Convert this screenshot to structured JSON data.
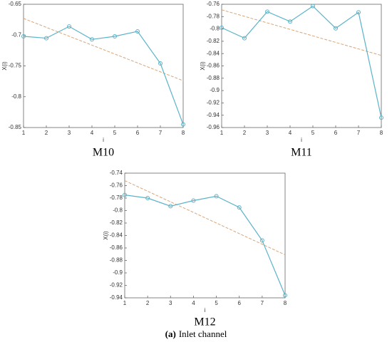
{
  "chart_data": [
    {
      "type": "line",
      "title": "M10",
      "xlabel": "i",
      "ylabel": "X(i)",
      "x": [
        1,
        2,
        3,
        4,
        5,
        6,
        7,
        8
      ],
      "values": [
        -0.702,
        -0.705,
        -0.686,
        -0.707,
        -0.702,
        -0.694,
        -0.746,
        -0.845
      ],
      "color": "#5bb3c9",
      "trend": {
        "x": [
          1,
          8
        ],
        "values": [
          -0.673,
          -0.774
        ],
        "color": "#d8a57a"
      },
      "xlim": [
        1,
        8
      ],
      "xticks": [
        1,
        2,
        3,
        4,
        5,
        6,
        7,
        8
      ],
      "ylim": [
        -0.85,
        -0.65
      ],
      "yticks": [
        -0.85,
        -0.8,
        -0.75,
        -0.7,
        -0.65
      ]
    },
    {
      "type": "line",
      "title": "M11",
      "xlabel": "i",
      "ylabel": "X(i)",
      "x": [
        1,
        2,
        3,
        4,
        5,
        6,
        7,
        8
      ],
      "values": [
        -0.798,
        -0.815,
        -0.772,
        -0.788,
        -0.763,
        -0.799,
        -0.773,
        -0.944
      ],
      "color": "#5bb3c9",
      "trend": {
        "x": [
          1,
          8
        ],
        "values": [
          -0.769,
          -0.843
        ],
        "color": "#d8a57a"
      },
      "xlim": [
        1,
        8
      ],
      "xticks": [
        1,
        2,
        3,
        4,
        5,
        6,
        7,
        8
      ],
      "ylim": [
        -0.96,
        -0.76
      ],
      "yticks": [
        -0.96,
        -0.94,
        -0.92,
        -0.9,
        -0.88,
        -0.86,
        -0.84,
        -0.82,
        -0.8,
        -0.78,
        -0.76
      ]
    },
    {
      "type": "line",
      "title": "M12",
      "xlabel": "i",
      "ylabel": "X(i)",
      "x": [
        1,
        2,
        3,
        4,
        5,
        6,
        7,
        8
      ],
      "values": [
        -0.775,
        -0.78,
        -0.793,
        -0.784,
        -0.777,
        -0.795,
        -0.848,
        -0.936
      ],
      "color": "#5bb3c9",
      "trend": {
        "x": [
          1,
          8
        ],
        "values": [
          -0.752,
          -0.871
        ],
        "color": "#d8a57a"
      },
      "xlim": [
        1,
        8
      ],
      "xticks": [
        1,
        2,
        3,
        4,
        5,
        6,
        7,
        8
      ],
      "ylim": [
        -0.94,
        -0.74
      ],
      "yticks": [
        -0.94,
        -0.92,
        -0.9,
        -0.88,
        -0.86,
        -0.84,
        -0.82,
        -0.8,
        -0.78,
        -0.76,
        -0.74
      ]
    }
  ],
  "caption": {
    "label": "(a)",
    "text": "Inlet channel"
  }
}
